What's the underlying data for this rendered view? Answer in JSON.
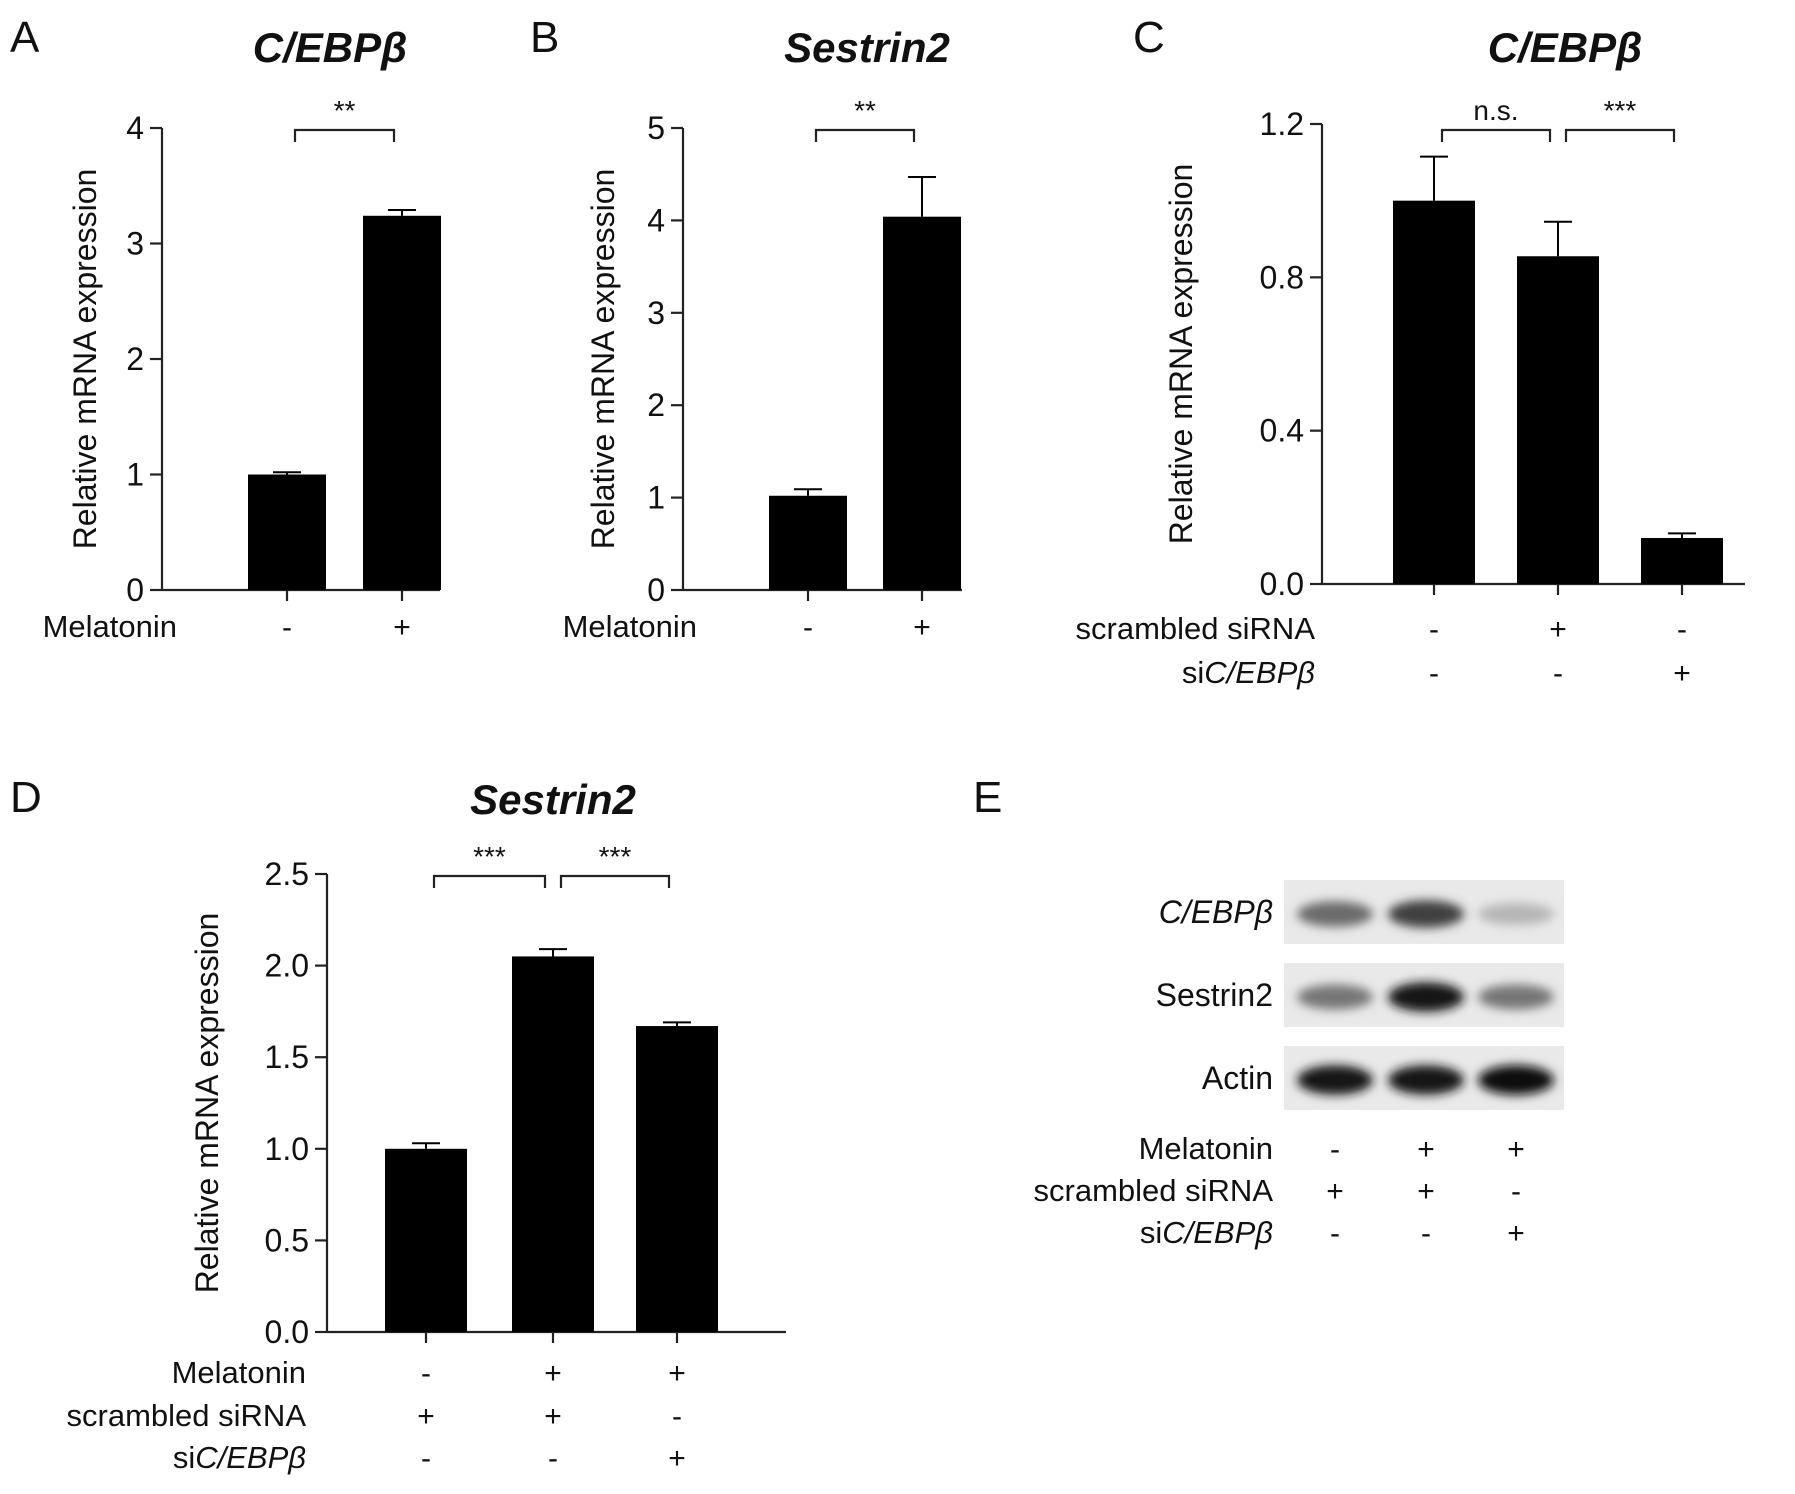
{
  "chart_data": [
    {
      "panel": "A",
      "type": "bar",
      "title": "C/EBPβ",
      "ylabel": "Relative mRNA expression",
      "ylim": [
        0,
        4
      ],
      "yticks": [
        "0",
        "1",
        "2",
        "3",
        "4"
      ],
      "values": [
        1.0,
        3.24
      ],
      "errors": [
        0.02,
        0.05
      ],
      "conditions": [
        {
          "name": "Melatonin",
          "name_prefix": "",
          "italic": false,
          "marks": [
            "-",
            "+"
          ]
        }
      ],
      "significance": [
        {
          "from": 0,
          "to": 1,
          "label": "**"
        }
      ],
      "bar_color": "#000000"
    },
    {
      "panel": "B",
      "type": "bar",
      "title": "Sestrin2",
      "ylabel": "Relative mRNA expression",
      "ylim": [
        0,
        5
      ],
      "yticks": [
        "0",
        "1",
        "2",
        "3",
        "4",
        "5"
      ],
      "values": [
        1.02,
        4.04
      ],
      "errors": [
        0.07,
        0.43
      ],
      "conditions": [
        {
          "name": "Melatonin",
          "name_prefix": "",
          "italic": false,
          "marks": [
            "-",
            "+"
          ]
        }
      ],
      "significance": [
        {
          "from": 0,
          "to": 1,
          "label": "**"
        }
      ],
      "bar_color": "#000000"
    },
    {
      "panel": "C",
      "type": "bar",
      "title": "C/EBPβ",
      "ylabel": "Relative mRNA expression",
      "ylim": [
        0,
        1.2
      ],
      "yticks": [
        "0.0",
        "0.4",
        "0.8",
        "1.2"
      ],
      "values": [
        1.0,
        0.855,
        0.12
      ],
      "errors": [
        0.115,
        0.09,
        0.012
      ],
      "conditions": [
        {
          "name": "scrambled siRNA",
          "name_prefix": "",
          "italic": false,
          "marks": [
            "-",
            "+",
            "-"
          ]
        },
        {
          "name": "C/EBPβ",
          "name_prefix": "si",
          "italic": true,
          "marks": [
            "-",
            "-",
            "+"
          ]
        }
      ],
      "significance": [
        {
          "from": 0,
          "to": 1,
          "label": "n.s."
        },
        {
          "from": 1,
          "to": 2,
          "label": "***"
        }
      ],
      "bar_color": "#000000"
    },
    {
      "panel": "D",
      "type": "bar",
      "title": "Sestrin2",
      "ylabel": "Relative mRNA expression",
      "ylim": [
        0,
        2.5
      ],
      "yticks": [
        "0.0",
        "0.5",
        "1.0",
        "1.5",
        "2.0",
        "2.5"
      ],
      "values": [
        1.0,
        2.05,
        1.67
      ],
      "errors": [
        0.03,
        0.04,
        0.02
      ],
      "conditions": [
        {
          "name": "Melatonin",
          "name_prefix": "",
          "italic": false,
          "marks": [
            "-",
            "+",
            "+"
          ]
        },
        {
          "name": "scrambled siRNA",
          "name_prefix": "",
          "italic": false,
          "marks": [
            "+",
            "+",
            "-"
          ]
        },
        {
          "name": "C/EBPβ",
          "name_prefix": "si",
          "italic": true,
          "marks": [
            "-",
            "-",
            "+"
          ]
        }
      ],
      "significance": [
        {
          "from": 0,
          "to": 1,
          "label": "***"
        },
        {
          "from": 1,
          "to": 2,
          "label": "***"
        }
      ],
      "bar_color": "#000000"
    }
  ],
  "blot": {
    "panel": "E",
    "rows": [
      {
        "label": "C/EBPβ",
        "italic": true,
        "intensity": [
          0.55,
          0.75,
          0.2
        ]
      },
      {
        "label": "Sestrin2",
        "italic": false,
        "intensity": [
          0.5,
          0.95,
          0.5
        ]
      },
      {
        "label": "Actin",
        "italic": false,
        "intensity": [
          0.95,
          0.95,
          0.98
        ]
      }
    ],
    "conditions": [
      {
        "name": "Melatonin",
        "name_prefix": "",
        "italic": false,
        "marks": [
          "-",
          "+",
          "+"
        ]
      },
      {
        "name": "scrambled siRNA",
        "name_prefix": "",
        "italic": false,
        "marks": [
          "+",
          "+",
          "-"
        ]
      },
      {
        "name": "C/EBPβ",
        "name_prefix": "si",
        "italic": true,
        "marks": [
          "-",
          "-",
          "+"
        ]
      }
    ]
  }
}
